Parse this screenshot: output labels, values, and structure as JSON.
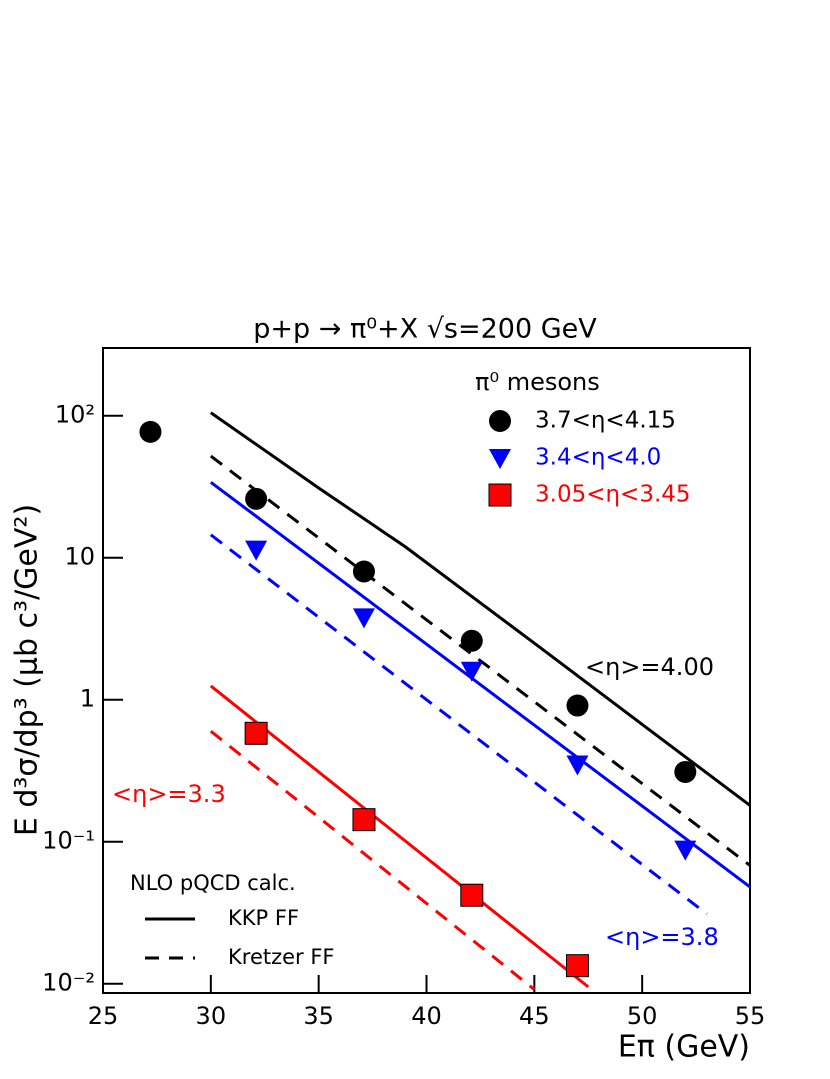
{
  "chart_data": {
    "type": "scatter",
    "title": "p+p → π⁰+X   √s=200 GeV",
    "x_label": "Eπ (GeV)",
    "y_label": "E d³σ/dp³ (μb c³/GeV²)",
    "xlim": [
      25,
      55
    ],
    "xticks": [
      25,
      30,
      35,
      40,
      45,
      50,
      55
    ],
    "ylim": [
      0.0086,
      300
    ],
    "log_y": true,
    "yticks": [
      {
        "value": 0.01,
        "label": "10⁻²"
      },
      {
        "value": 0.1,
        "label": "10⁻¹"
      },
      1,
      10,
      {
        "value": 100,
        "label": "10²"
      }
    ],
    "legend_title": "π⁰ mesons",
    "series": [
      {
        "name": "3.7<η<4.15",
        "color": "#000000",
        "marker": "circle",
        "x": [
          27.2,
          32.1,
          37.1,
          42.1,
          47,
          52
        ],
        "values": [
          77,
          26,
          8.0,
          2.6,
          0.91,
          0.31
        ]
      },
      {
        "name": "3.4<η<4.0",
        "color": "#0000ff",
        "marker": "triangle",
        "x": [
          32.1,
          37.1,
          42.1,
          47,
          52
        ],
        "values": [
          11.4,
          3.8,
          1.6,
          0.35,
          0.088
        ]
      },
      {
        "name": "3.05<η<3.45",
        "color": "#ff0000",
        "marker": "square",
        "x": [
          32.1,
          37.1,
          42.1,
          47
        ],
        "values": [
          0.58,
          0.143,
          0.042,
          0.0134
        ]
      }
    ],
    "curves": [
      {
        "color": "#000000",
        "style": "solid",
        "x": [
          30,
          35,
          39,
          45,
          50,
          55
        ],
        "values": [
          105,
          31,
          12,
          2.5,
          0.67,
          0.18
        ]
      },
      {
        "color": "#000000",
        "style": "dashed",
        "x": [
          30,
          55
        ],
        "values": [
          52,
          0.068
        ]
      },
      {
        "color": "#0000ff",
        "style": "solid",
        "x": [
          30,
          55
        ],
        "values": [
          34,
          0.048
        ]
      },
      {
        "color": "#0000ff",
        "style": "dashed",
        "x": [
          30,
          53
        ],
        "values": [
          14.5,
          0.031
        ]
      },
      {
        "color": "#ff0000",
        "style": "solid",
        "x": [
          30,
          47.5
        ],
        "values": [
          1.25,
          0.0095
        ]
      },
      {
        "color": "#ff0000",
        "style": "dashed",
        "x": [
          30,
          45
        ],
        "values": [
          0.6,
          0.0091
        ]
      }
    ],
    "line_legend": {
      "title": "NLO pQCD calc.",
      "entries": [
        {
          "label": "KKP FF",
          "style": "solid"
        },
        {
          "label": "Kretzer FF",
          "style": "dashed"
        }
      ]
    },
    "annotations": [
      {
        "text": "<η>=4.00",
        "color": "#000000"
      },
      {
        "text": "<η>=3.3",
        "color": "#ff0000"
      },
      {
        "text": "<η>=3.8",
        "color": "#0000ff"
      }
    ]
  }
}
